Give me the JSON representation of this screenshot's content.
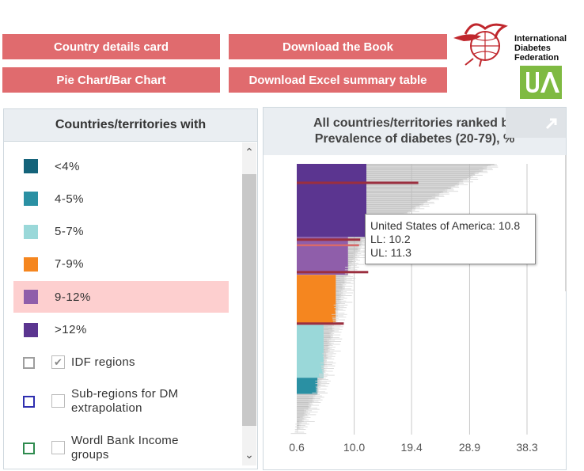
{
  "buttons": {
    "country_details": "Country details card",
    "download_book": "Download the Book",
    "pie_bar": "Pie Chart/Bar Chart",
    "download_excel": "Download Excel summary table"
  },
  "logo": {
    "line1": "International",
    "line2": "Diabetes",
    "line3": "Federation",
    "brand_color": "#c0272d",
    "badge_color": "#7fba42"
  },
  "legend": {
    "title": "Countries/territories with",
    "items": [
      {
        "label": "<4%",
        "color": "#14637a",
        "selected": false
      },
      {
        "label": "4-5%",
        "color": "#2a90a3",
        "selected": false
      },
      {
        "label": "5-7%",
        "color": "#9ad8d9",
        "selected": false
      },
      {
        "label": "7-9%",
        "color": "#f5861f",
        "selected": false
      },
      {
        "label": "9-12%",
        "color": "#8f5eaa",
        "selected": true
      },
      {
        "label": ">12%",
        "color": "#5b3590",
        "selected": false
      }
    ],
    "toggles": [
      {
        "line1": "IDF regions",
        "line2": "",
        "border": "#9e9e9e",
        "checked": true
      },
      {
        "line1": "Sub-regions for DM",
        "line2": "extrapolation",
        "border": "#2f2fb0",
        "checked": false
      },
      {
        "line1": "Wordl Bank Income",
        "line2": "groups",
        "border": "#2e8b4e",
        "checked": false
      }
    ]
  },
  "chart_data": {
    "type": "bar",
    "orientation": "horizontal",
    "title": "All countries/territories ranked by",
    "subtitle": "Prevalence of diabetes (20-79), %",
    "xticks": [
      "0.6",
      "10.0",
      "19.4",
      "28.9",
      "38.3"
    ],
    "xlim": [
      0.6,
      38.3
    ],
    "grid": true,
    "bands": [
      {
        "range": ">12%",
        "color": "#5b3590",
        "from_value": 12,
        "share": 0.27
      },
      {
        "range": "9-12%",
        "color": "#8f5eaa",
        "from_value": 9,
        "share": 0.14
      },
      {
        "range": "7-9%",
        "color": "#f5861f",
        "from_value": 7,
        "share": 0.18
      },
      {
        "range": "5-7%",
        "color": "#9ad8d9",
        "from_value": 5,
        "share": 0.2
      },
      {
        "range": "4-5%",
        "color": "#2a90a3",
        "from_value": 4,
        "share": 0.06
      },
      {
        "range": "<4%",
        "color": "#14637a",
        "from_value": 0.6,
        "share": 0.15
      }
    ],
    "region_markers": [
      {
        "value": 20.5,
        "rank_fraction": 0.07
      },
      {
        "value": 11.0,
        "rank_fraction": 0.28
      },
      {
        "value": 12.3,
        "rank_fraction": 0.4
      },
      {
        "value": 8.3,
        "rank_fraction": 0.59
      }
    ],
    "highlight": {
      "country": "United States of America",
      "value": 10.8,
      "ll": 10.2,
      "ul": 11.3
    },
    "tooltip": {
      "line1": "United States of America: 10.8",
      "line2": "LL: 10.2",
      "line3": "UL: 11.3"
    }
  }
}
